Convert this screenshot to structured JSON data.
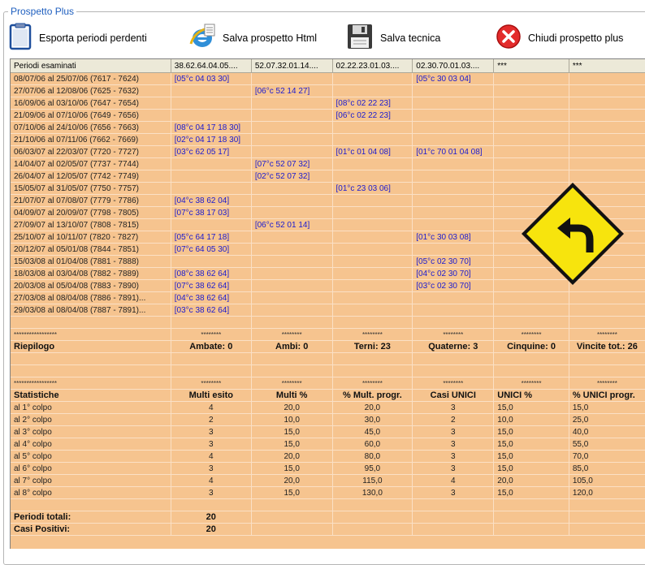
{
  "window": {
    "title": "Prospetto Plus"
  },
  "toolbar": [
    {
      "id": "export",
      "label": "Esporta periodi perdenti",
      "icon": "clipboard-icon"
    },
    {
      "id": "save_html",
      "label": "Salva prospetto Html",
      "icon": "ie-icon"
    },
    {
      "id": "save_tech",
      "label": "Salva tecnica",
      "icon": "floppy-save-icon"
    },
    {
      "id": "close",
      "label": "Chiudi prospetto plus",
      "icon": "close-red-icon"
    }
  ],
  "grid": {
    "headers": [
      "Periodi esaminati",
      "38.62.64.04.05....",
      "52.07.32.01.14....",
      "02.22.23.01.03....",
      "02.30.70.01.03....",
      "***",
      "***"
    ],
    "rows": [
      [
        "08/07/06 al 25/07/06  (7617 - 7624)",
        "[05°c 04 03 30]",
        "",
        "",
        "[05°c 30 03 04]",
        "",
        ""
      ],
      [
        "27/07/06 al 12/08/06  (7625 - 7632)",
        "",
        "[06°c 52 14 27]",
        "",
        "",
        "",
        ""
      ],
      [
        "16/09/06 al 03/10/06  (7647 - 7654)",
        "",
        "",
        "[08°c 02 22 23]",
        "",
        "",
        ""
      ],
      [
        "21/09/06 al 07/10/06  (7649 - 7656)",
        "",
        "",
        "[06°c 02 22 23]",
        "",
        "",
        ""
      ],
      [
        "07/10/06 al 24/10/06  (7656 - 7663)",
        "[08°c 04 17 18 30]",
        "",
        "",
        "",
        "",
        ""
      ],
      [
        "21/10/06 al 07/11/06  (7662 - 7669)",
        "[02°c 04 17 18 30]",
        "",
        "",
        "",
        "",
        ""
      ],
      [
        "06/03/07 al 22/03/07  (7720 - 7727)",
        "[03°c 62 05 17]",
        "",
        "[01°c 01 04 08]",
        "[01°c 70 01 04 08]",
        "",
        ""
      ],
      [
        "14/04/07 al 02/05/07  (7737 - 7744)",
        "",
        "[07°c 52 07 32]",
        "",
        "",
        "",
        ""
      ],
      [
        "26/04/07 al 12/05/07  (7742 - 7749)",
        "",
        "[02°c 52 07 32]",
        "",
        "",
        "",
        ""
      ],
      [
        "15/05/07 al 31/05/07  (7750 - 7757)",
        "",
        "",
        "[01°c 23 03 06]",
        "",
        "",
        ""
      ],
      [
        "21/07/07 al 07/08/07  (7779 - 7786)",
        "[04°c 38 62 04]",
        "",
        "",
        "",
        "",
        ""
      ],
      [
        "04/09/07 al 20/09/07  (7798 - 7805)",
        "[07°c 38 17 03]",
        "",
        "",
        "",
        "",
        ""
      ],
      [
        "27/09/07 al 13/10/07  (7808 - 7815)",
        "",
        "[06°c 52 01 14]",
        "",
        "",
        "",
        ""
      ],
      [
        "25/10/07 al 10/11/07  (7820 - 7827)",
        "[05°c 64 17 18]",
        "",
        "",
        "[01°c 30 03 08]",
        "",
        ""
      ],
      [
        "20/12/07 al 05/01/08  (7844 - 7851)",
        "[07°c 64 05 30]",
        "",
        "",
        "",
        "",
        ""
      ],
      [
        "15/03/08 al 01/04/08  (7881 - 7888)",
        "",
        "",
        "",
        "[05°c 02 30 70]",
        "",
        ""
      ],
      [
        "18/03/08 al 03/04/08  (7882 - 7889)",
        "[08°c 38 62 64]",
        "",
        "",
        "[04°c 02 30 70]",
        "",
        ""
      ],
      [
        "20/03/08 al 05/04/08  (7883 - 7890)",
        "[07°c 38 62 64]",
        "",
        "",
        "[03°c 02 30 70]",
        "",
        ""
      ],
      [
        "27/03/08 al 08/04/08  (7886 - 7891)...",
        "[04°c 38 62 64]",
        "",
        "",
        "",
        "",
        ""
      ],
      [
        "29/03/08 al 08/04/08  (7887 - 7891)...",
        "[03°c 38 62 64]",
        "",
        "",
        "",
        "",
        ""
      ]
    ],
    "summary_sep": [
      "*****************",
      "********",
      "********",
      "********",
      "********",
      "********",
      "********"
    ],
    "summary": [
      "Riepilogo",
      "Ambate: 0",
      "Ambi: 0",
      "Terni: 23",
      "Quaterne: 3",
      "Cinquine: 0",
      "Vincite tot.: 26"
    ],
    "stats_sep": [
      "*****************",
      "********",
      "********",
      "********",
      "********",
      "********",
      "********"
    ],
    "stats_header": [
      "Statistiche",
      "Multi esito",
      "Multi %",
      "% Mult. progr.",
      "Casi UNICI",
      "UNICI %",
      "% UNICI progr."
    ],
    "stats_rows": [
      [
        "al 1° colpo",
        "4",
        "20,0",
        "20,0",
        "3",
        "15,0",
        "15,0"
      ],
      [
        "al 2° colpo",
        "2",
        "10,0",
        "30,0",
        "2",
        "10,0",
        "25,0"
      ],
      [
        "al 3° colpo",
        "3",
        "15,0",
        "45,0",
        "3",
        "15,0",
        "40,0"
      ],
      [
        "al 4° colpo",
        "3",
        "15,0",
        "60,0",
        "3",
        "15,0",
        "55,0"
      ],
      [
        "al 5° colpo",
        "4",
        "20,0",
        "80,0",
        "3",
        "15,0",
        "70,0"
      ],
      [
        "al 6° colpo",
        "3",
        "15,0",
        "95,0",
        "3",
        "15,0",
        "85,0"
      ],
      [
        "al 7° colpo",
        "4",
        "20,0",
        "115,0",
        "4",
        "20,0",
        "105,0"
      ],
      [
        "al 8° colpo",
        "3",
        "15,0",
        "130,0",
        "3",
        "15,0",
        "120,0"
      ]
    ],
    "totals": [
      [
        "Periodi totali:",
        "20"
      ],
      [
        "Casi Positivi:",
        "20"
      ]
    ]
  }
}
